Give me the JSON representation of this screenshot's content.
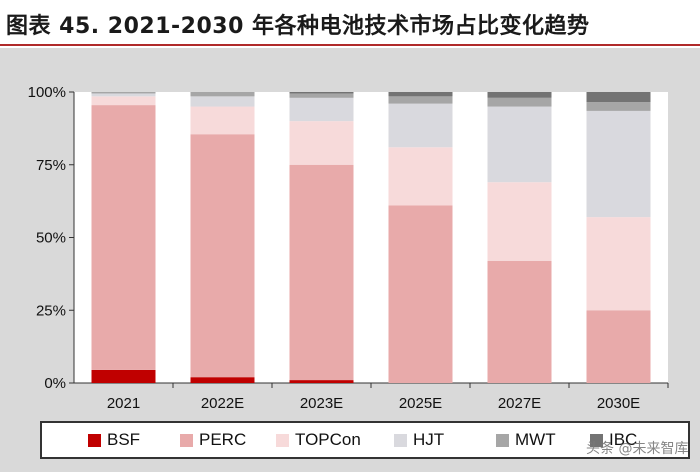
{
  "title": "图表 45. 2021-2030 年各种电池技术市场占比变化趋势",
  "watermark": "头条 @未来智库",
  "chart_data": {
    "type": "bar",
    "stacked": true,
    "title": "图表 45. 2021-2030 年各种电池技术市场占比变化趋势",
    "xlabel": "",
    "ylabel": "",
    "ylim": [
      0,
      100
    ],
    "yticks": [
      "0%",
      "25%",
      "50%",
      "75%",
      "100%"
    ],
    "categories": [
      "2021",
      "2022E",
      "2023E",
      "2025E",
      "2027E",
      "2030E"
    ],
    "series": [
      {
        "name": "BSF",
        "color": "#c00000",
        "values": [
          4.5,
          2,
          1,
          0,
          0,
          0
        ]
      },
      {
        "name": "PERC",
        "color": "#e8aaaa",
        "values": [
          91,
          83.5,
          74,
          61,
          42,
          25
        ]
      },
      {
        "name": "TOPCon",
        "color": "#f7dada",
        "values": [
          3,
          9.5,
          15,
          20,
          27,
          32
        ]
      },
      {
        "name": "HJT",
        "color": "#d9d9de",
        "values": [
          1,
          3.5,
          8,
          15,
          26,
          36.5
        ]
      },
      {
        "name": "MWT",
        "color": "#a6a6a6",
        "values": [
          0.5,
          1.5,
          1.5,
          2.5,
          3,
          3
        ]
      },
      {
        "name": "IBC",
        "color": "#737373",
        "values": [
          0,
          0,
          0.5,
          1.5,
          2,
          3.5
        ]
      }
    ],
    "legend": "bottom",
    "grid": false
  }
}
